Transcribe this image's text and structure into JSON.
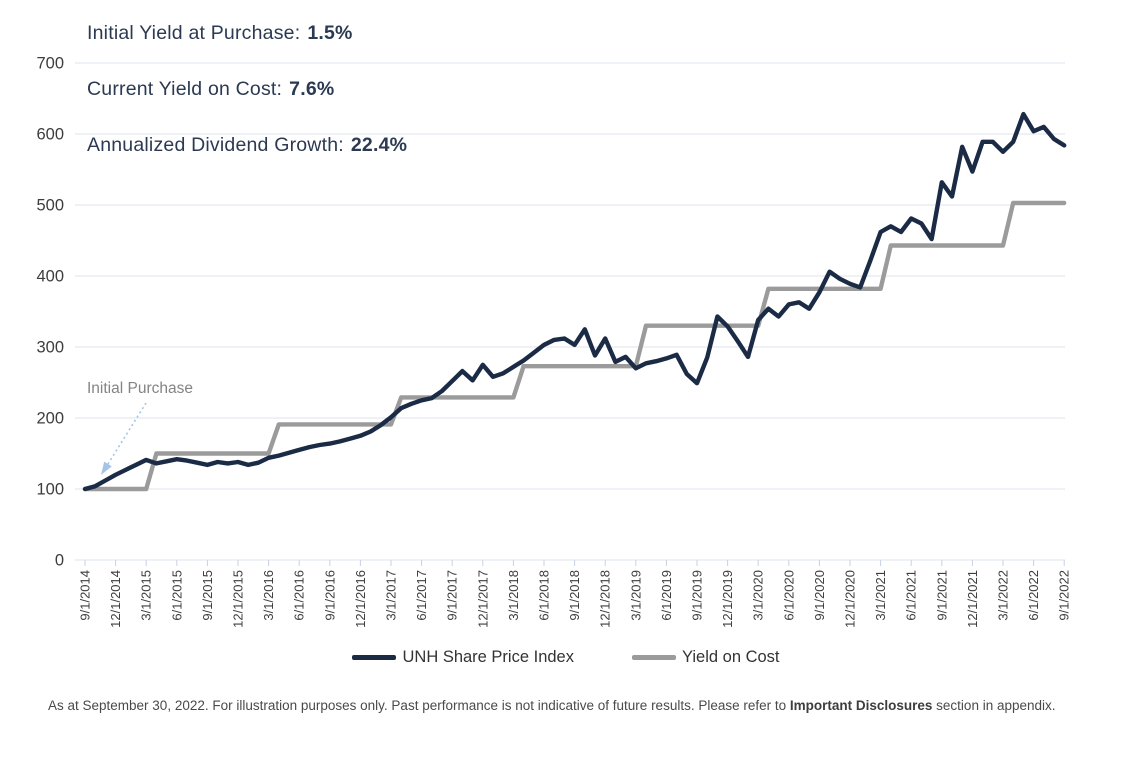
{
  "stats": [
    {
      "label": "Initial Yield at Purchase:",
      "value": "1.5%"
    },
    {
      "label": "Current Yield on Cost:",
      "value": "7.6%"
    },
    {
      "label": "Annualized Dividend Growth:",
      "value": "22.4%"
    }
  ],
  "annotation": {
    "label": "Initial Purchase"
  },
  "footnote": {
    "text_before": "As at September 30, 2022. For illustration purposes only. Past performance is not indicative of future results. Please refer to ",
    "bold": "Important Disclosures",
    "text_after": " section in appendix."
  },
  "colors": {
    "navy_line": "#1b2b45",
    "gray_line": "#9b9b9b",
    "grid": "#dde5ef",
    "tick": "#c7d2e2",
    "axis_text": "#3d3d3d",
    "arrow": "#a6c4e6"
  },
  "chart_data": {
    "type": "line",
    "title": "",
    "xlabel": "",
    "ylabel": "",
    "x_start": "9/1/2014",
    "x_end": "9/1/2022",
    "x_frequency": "monthly",
    "x_tick_labels": [
      "9/1/2014",
      "12/1/2014",
      "3/1/2015",
      "6/1/2015",
      "9/1/2015",
      "12/1/2015",
      "3/1/2016",
      "6/1/2016",
      "9/1/2016",
      "12/1/2016",
      "3/1/2017",
      "6/1/2017",
      "9/1/2017",
      "12/1/2017",
      "3/1/2018",
      "6/1/2018",
      "9/1/2018",
      "12/1/2018",
      "3/1/2019",
      "6/1/2019",
      "9/1/2019",
      "12/1/2019",
      "3/1/2020",
      "6/1/2020",
      "9/1/2020",
      "12/1/2020",
      "3/1/2021",
      "6/1/2021",
      "9/1/2021",
      "12/1/2021",
      "3/1/2022",
      "6/1/2022",
      "9/1/2022"
    ],
    "ylim": [
      0,
      700
    ],
    "y_ticks": [
      0,
      100,
      200,
      300,
      400,
      500,
      600,
      700
    ],
    "grid": "horizontal",
    "legend_position": "bottom",
    "annotations": [
      {
        "text": "Initial Purchase",
        "target_x": "9/1/2014",
        "target_y": 100
      }
    ],
    "series": [
      {
        "name": "UNH Share Price Index",
        "color": "#1b2b45",
        "values": [
          100,
          104,
          112,
          120,
          127,
          134,
          141,
          136,
          139,
          142,
          140,
          137,
          134,
          138,
          136,
          138,
          134,
          137,
          144,
          147,
          151,
          155,
          159,
          162,
          164,
          167,
          171,
          175,
          181,
          190,
          201,
          214,
          220,
          225,
          228,
          238,
          252,
          266,
          253,
          275,
          258,
          263,
          272,
          281,
          292,
          303,
          310,
          312,
          303,
          325,
          288,
          312,
          279,
          286,
          270,
          277,
          280,
          284,
          289,
          262,
          249,
          285,
          343,
          329,
          308,
          286,
          338,
          354,
          343,
          360,
          363,
          354,
          377,
          406,
          396,
          389,
          384,
          422,
          462,
          470,
          462,
          481,
          474,
          452,
          532,
          512,
          582,
          547,
          589,
          589,
          575,
          589,
          628,
          604,
          610,
          593,
          584
        ]
      },
      {
        "name": "Yield on Cost",
        "color": "#9b9b9b",
        "values": [
          100,
          100,
          100,
          100,
          100,
          100,
          100,
          150,
          150,
          150,
          150,
          150,
          150,
          150,
          150,
          150,
          150,
          150,
          150,
          191,
          191,
          191,
          191,
          191,
          191,
          191,
          191,
          191,
          191,
          191,
          191,
          229,
          229,
          229,
          229,
          229,
          229,
          229,
          229,
          229,
          229,
          229,
          229,
          273,
          273,
          273,
          273,
          273,
          273,
          273,
          273,
          273,
          273,
          273,
          273,
          330,
          330,
          330,
          330,
          330,
          330,
          330,
          330,
          330,
          330,
          330,
          330,
          382,
          382,
          382,
          382,
          382,
          382,
          382,
          382,
          382,
          382,
          382,
          382,
          443,
          443,
          443,
          443,
          443,
          443,
          443,
          443,
          443,
          443,
          443,
          443,
          503,
          503,
          503,
          503,
          503,
          503
        ]
      }
    ]
  }
}
